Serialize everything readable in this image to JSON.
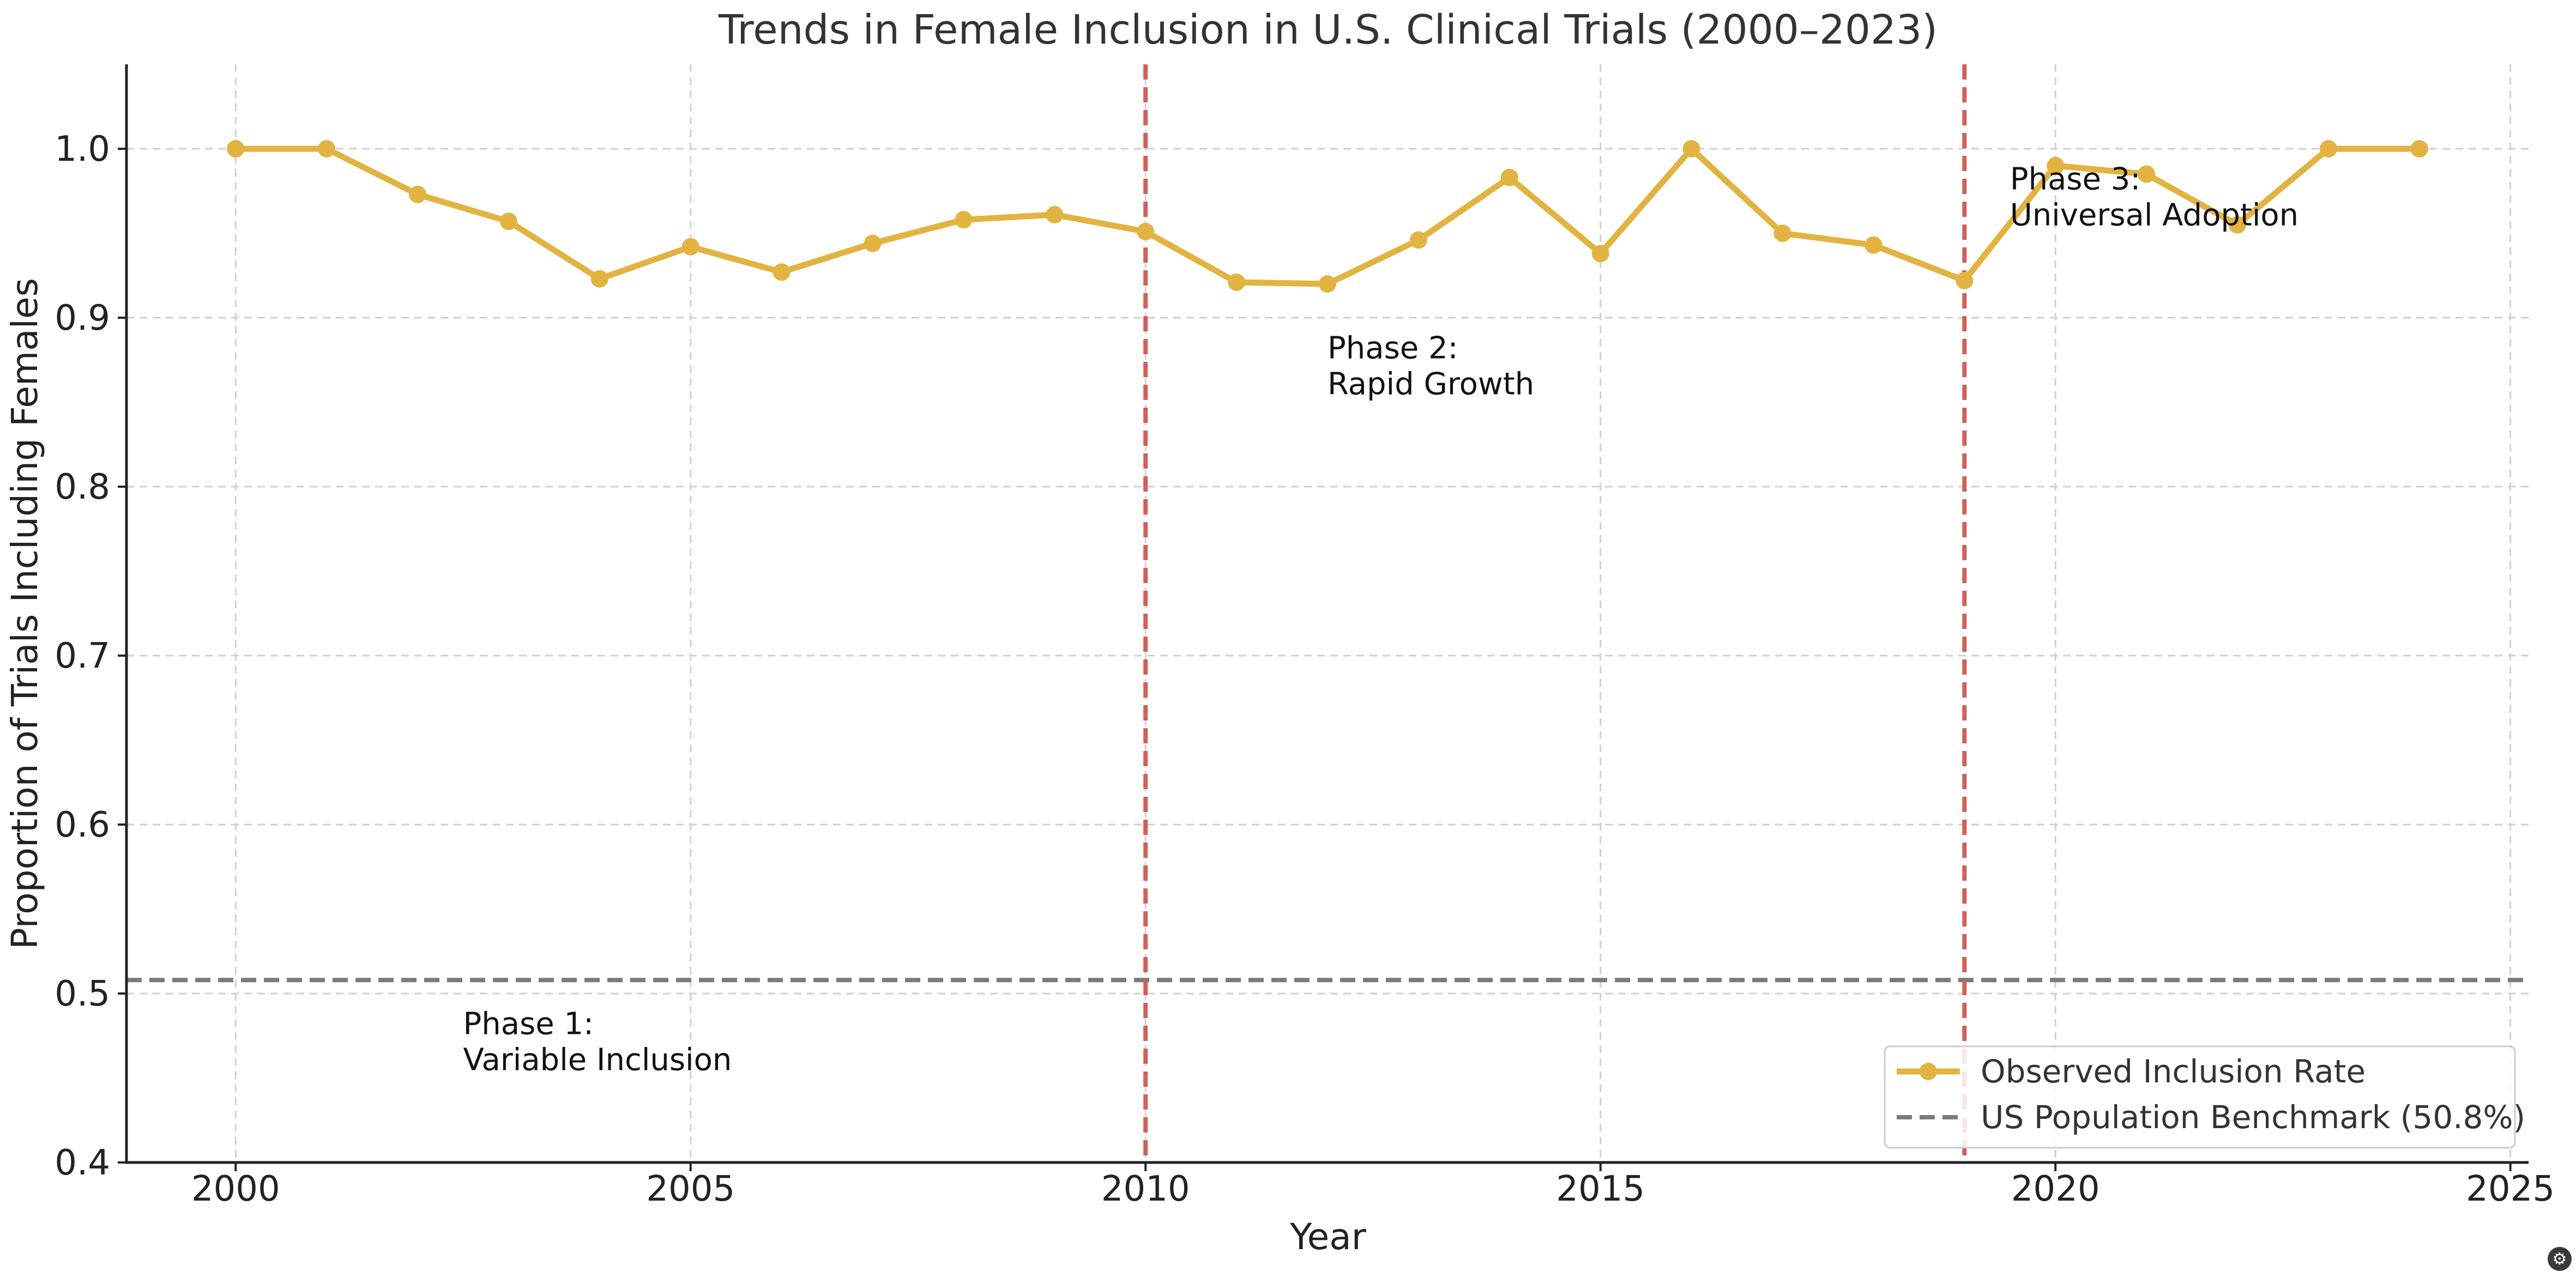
{
  "chart_data": {
    "type": "line",
    "title": "Trends in Female Inclusion in U.S. Clinical Trials (2000–2023)",
    "xlabel": "Year",
    "ylabel": "Proportion of Trials Including Females",
    "xlim": [
      1998.8,
      2025.2
    ],
    "ylim": [
      0.4,
      1.05
    ],
    "x_ticks": [
      2000,
      2005,
      2010,
      2015,
      2020,
      2025
    ],
    "y_ticks": [
      0.4,
      0.5,
      0.6,
      0.7,
      0.8,
      0.9,
      1.0
    ],
    "y_tick_labels": [
      "0.4",
      "0.5",
      "0.6",
      "0.7",
      "0.8",
      "0.9",
      "1.0"
    ],
    "grid": true,
    "series": [
      {
        "name": "Observed Inclusion Rate",
        "color": "#e3b341",
        "marker": "circle",
        "x": [
          2000,
          2001,
          2002,
          2003,
          2004,
          2005,
          2006,
          2007,
          2008,
          2009,
          2010,
          2011,
          2012,
          2013,
          2014,
          2015,
          2016,
          2017,
          2018,
          2019,
          2020,
          2021,
          2022,
          2023,
          2024
        ],
        "y": [
          1.0,
          1.0,
          0.973,
          0.957,
          0.923,
          0.942,
          0.927,
          0.944,
          0.958,
          0.961,
          0.951,
          0.921,
          0.92,
          0.946,
          0.983,
          0.938,
          1.0,
          0.95,
          0.943,
          0.922,
          0.99,
          0.985,
          0.955,
          1.0,
          1.0
        ]
      }
    ],
    "reference_lines": [
      {
        "name": "US Population Benchmark (50.8%)",
        "orientation": "horizontal",
        "value": 0.508,
        "color": "#7a7a7a",
        "style": "dashed"
      },
      {
        "orientation": "vertical",
        "value": 2010,
        "color": "#d0605a",
        "style": "dashed"
      },
      {
        "orientation": "vertical",
        "value": 2019,
        "color": "#d0605a",
        "style": "dashed"
      }
    ],
    "annotations": [
      {
        "lines": [
          "Phase 1:",
          "Variable Inclusion"
        ],
        "x": 2002.5,
        "y": 0.476
      },
      {
        "lines": [
          "Phase 2:",
          "Rapid Growth"
        ],
        "x": 2012.0,
        "y": 0.876
      },
      {
        "lines": [
          "Phase 3:",
          "Universal Adoption"
        ],
        "x": 2019.5,
        "y": 0.976
      }
    ],
    "legend": {
      "position": "lower-right",
      "entries": [
        {
          "label": "Observed Inclusion Rate",
          "color": "#e3b341",
          "style": "line-marker"
        },
        {
          "label": "US Population Benchmark (50.8%)",
          "color": "#7a7a7a",
          "style": "dashed"
        }
      ]
    }
  }
}
